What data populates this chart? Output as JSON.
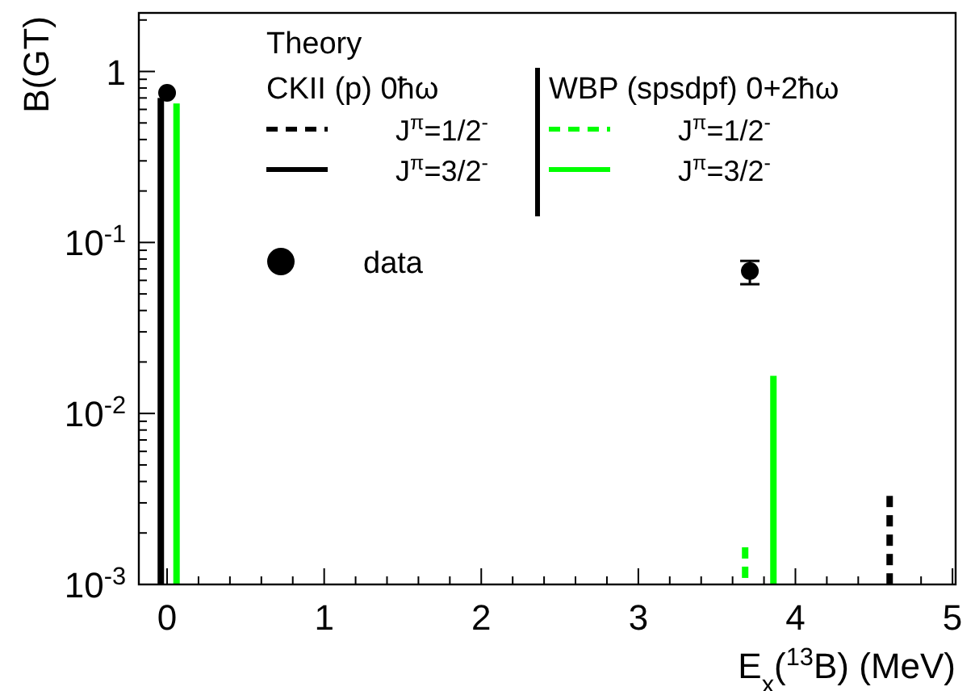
{
  "chart_data": {
    "type": "bar",
    "xlabel": "E$_{x}$($^{13}$B) (MeV)",
    "ylabel": "B(GT)",
    "legend_title": "Theory",
    "annotations": [
      "CKII (p) 0ħω",
      "WBP (spsdpf) 0+2ħω"
    ],
    "log": "y",
    "xlim": [
      -0.18,
      5.02
    ],
    "ylim": [
      0.001,
      2.2
    ],
    "xticks": [
      0,
      {
        "value": 0.2,
        "label": null
      },
      {
        "value": 0.4,
        "label": null
      },
      {
        "value": 0.6,
        "label": null
      },
      {
        "value": 0.8,
        "label": null
      },
      1,
      {
        "value": 1.2,
        "label": null
      },
      {
        "value": 1.4,
        "label": null
      },
      {
        "value": 1.6,
        "label": null
      },
      {
        "value": 1.8,
        "label": null
      },
      2,
      {
        "value": 2.2,
        "label": null
      },
      {
        "value": 2.4,
        "label": null
      },
      {
        "value": 2.6,
        "label": null
      },
      {
        "value": 2.8,
        "label": null
      },
      3,
      {
        "value": 3.2,
        "label": null
      },
      {
        "value": 3.4,
        "label": null
      },
      {
        "value": 3.6,
        "label": null
      },
      {
        "value": 3.8,
        "label": null
      },
      4,
      {
        "value": 4.2,
        "label": null
      },
      {
        "value": 4.4,
        "label": null
      },
      {
        "value": 4.6,
        "label": null
      },
      {
        "value": 4.8,
        "label": null
      },
      5
    ],
    "yticks": [
      {
        "value": 0.001,
        "label": "10$^{-3}$"
      },
      {
        "value": 0.002,
        "label": null
      },
      {
        "value": 0.003,
        "label": null
      },
      {
        "value": 0.004,
        "label": null
      },
      {
        "value": 0.005,
        "label": null
      },
      {
        "value": 0.006,
        "label": null
      },
      {
        "value": 0.007,
        "label": null
      },
      {
        "value": 0.008,
        "label": null
      },
      {
        "value": 0.009,
        "label": null
      },
      {
        "value": 0.01,
        "label": "10$^{-2}$"
      },
      {
        "value": 0.02,
        "label": null
      },
      {
        "value": 0.03,
        "label": null
      },
      {
        "value": 0.04,
        "label": null
      },
      {
        "value": 0.05,
        "label": null
      },
      {
        "value": 0.06,
        "label": null
      },
      {
        "value": 0.07,
        "label": null
      },
      {
        "value": 0.08,
        "label": null
      },
      {
        "value": 0.09,
        "label": null
      },
      {
        "value": 0.1,
        "label": "10$^{-1}$"
      },
      {
        "value": 0.2,
        "label": null
      },
      {
        "value": 0.3,
        "label": null
      },
      {
        "value": 0.4,
        "label": null
      },
      {
        "value": 0.5,
        "label": null
      },
      {
        "value": 0.6,
        "label": null
      },
      {
        "value": 0.7,
        "label": null
      },
      {
        "value": 0.8,
        "label": null
      },
      {
        "value": 0.9,
        "label": null
      },
      1,
      {
        "value": 2,
        "label": null
      }
    ],
    "legend": "top",
    "grid": false,
    "series": [
      {
        "name": "J$^{π}$=1/2$^{-}$",
        "color": "#000000",
        "line_style": "dashed",
        "x": [
          4.6
        ],
        "values": [
          0.0033
        ]
      },
      {
        "name": "J$^{π}$=3/2$^{-}$",
        "color": "#000000",
        "line_style": "solid",
        "x": [
          -0.04
        ],
        "values": [
          0.7
        ]
      },
      {
        "name": "J$^{π}$=1/2$^{-}$",
        "color": "#00ff00",
        "line_style": "dashed",
        "x": [
          3.68
        ],
        "values": [
          0.00165
        ]
      },
      {
        "name": "J$^{π}$=3/2$^{-}$",
        "color": "#00ff00",
        "line_style": "solid",
        "x": [
          0.06,
          3.86
        ],
        "values": [
          0.65,
          0.0166
        ]
      },
      {
        "name": "data",
        "type": "scatter",
        "color": "#000000",
        "marker": "circle",
        "x": [
          0.0,
          3.71
        ],
        "values": [
          0.75,
          0.068
        ],
        "errors": [
          null,
          [
            0.057,
            0.078
          ]
        ]
      }
    ]
  }
}
